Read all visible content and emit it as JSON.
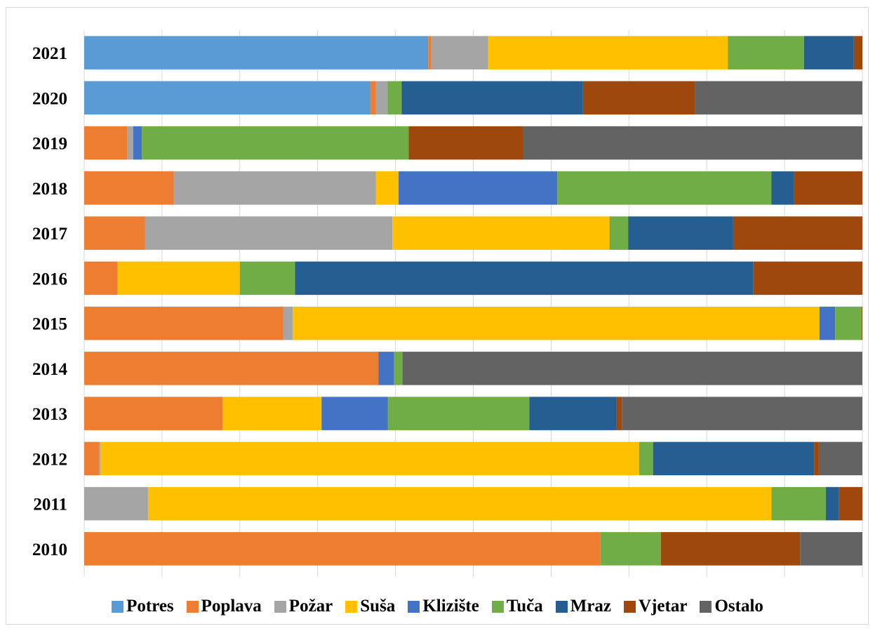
{
  "chart_data": {
    "type": "bar",
    "orientation": "horizontal",
    "stacked": "percent",
    "categories": [
      "2021",
      "2020",
      "2019",
      "2018",
      "2017",
      "2016",
      "2015",
      "2014",
      "2013",
      "2012",
      "2011",
      "2010"
    ],
    "xlim": [
      0,
      100
    ],
    "grid": true,
    "legend_position": "bottom",
    "series": [
      {
        "name": "Potres",
        "color": "#5b9bd5",
        "values": [
          44.2,
          36.8,
          0,
          0,
          0,
          0,
          0,
          0,
          0,
          0,
          0,
          0
        ]
      },
      {
        "name": "Poplava",
        "color": "#ed7d31",
        "values": [
          0.4,
          0.7,
          5.5,
          11.5,
          7.8,
          4.3,
          25.6,
          37.8,
          17.8,
          1.9,
          0,
          66.3
        ]
      },
      {
        "name": "Požar",
        "color": "#a5a5a5",
        "values": [
          7.3,
          1.5,
          0.8,
          26.0,
          31.8,
          0,
          1.2,
          0,
          0,
          0.2,
          8.2,
          0
        ]
      },
      {
        "name": "Suša",
        "color": "#ffc000",
        "values": [
          30.8,
          0,
          0,
          2.9,
          27.9,
          15.7,
          67.7,
          0,
          12.7,
          69.2,
          80.1,
          0
        ]
      },
      {
        "name": "Klizište",
        "color": "#4472c4",
        "values": [
          0,
          0,
          1.1,
          20.4,
          0,
          0,
          2.0,
          2.0,
          8.5,
          0,
          0,
          0
        ]
      },
      {
        "name": "Tuča",
        "color": "#70ad47",
        "values": [
          9.8,
          1.8,
          34.3,
          27.5,
          2.4,
          7.1,
          3.4,
          1.1,
          18.2,
          1.8,
          7.0,
          7.8
        ]
      },
      {
        "name": "Mraz",
        "color": "#255e91",
        "values": [
          6.4,
          23.3,
          0,
          2.9,
          13.5,
          58.9,
          0,
          0,
          11.2,
          20.7,
          1.7,
          0
        ]
      },
      {
        "name": "Vjetar",
        "color": "#9e480e",
        "values": [
          1.1,
          14.4,
          14.7,
          8.8,
          16.6,
          14.0,
          0.1,
          0,
          0.7,
          0.6,
          3.0,
          17.9
        ]
      },
      {
        "name": "Ostalo",
        "color": "#636363",
        "values": [
          0,
          21.5,
          43.6,
          0,
          0,
          0,
          0,
          59.1,
          30.9,
          5.6,
          0,
          8.0
        ]
      }
    ]
  }
}
